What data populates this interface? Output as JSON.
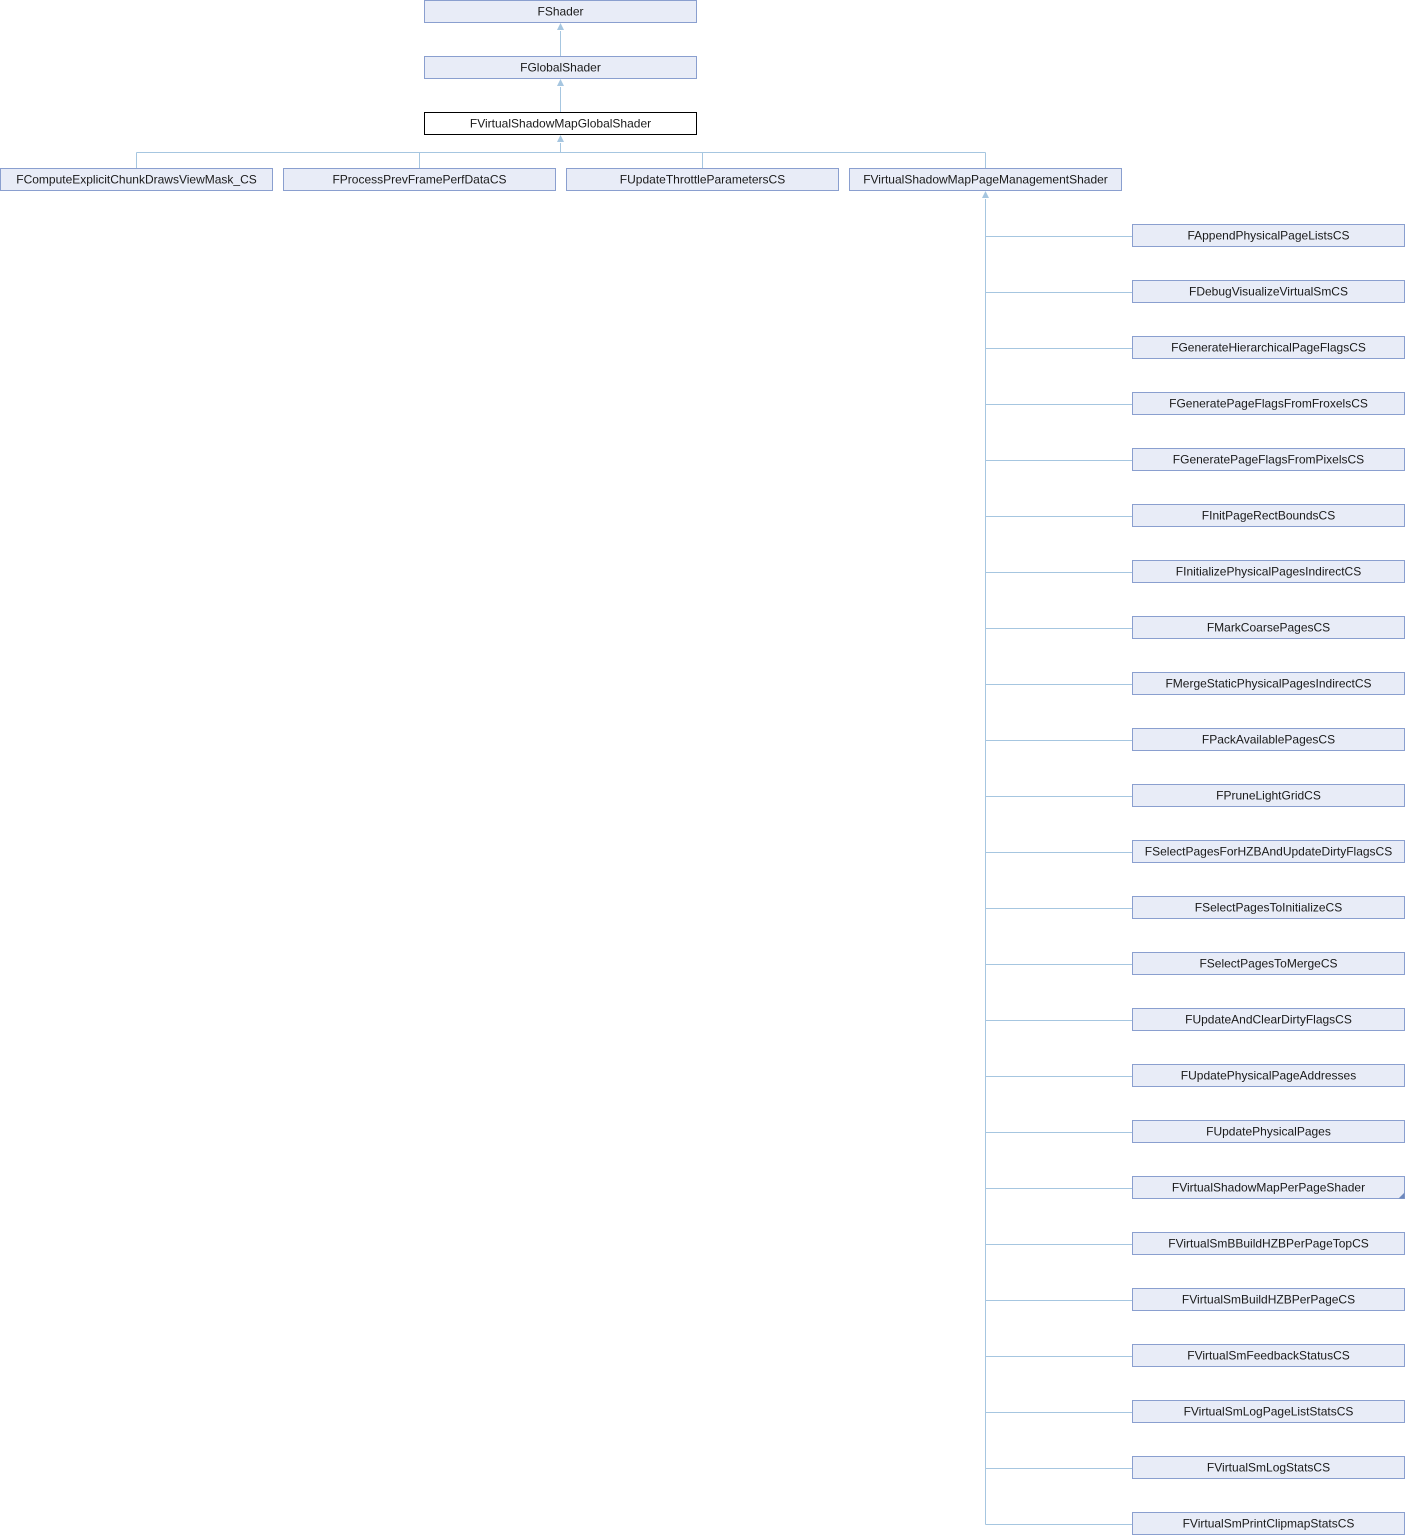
{
  "diagram": {
    "type": "class-inheritance",
    "nodes": {
      "root": "FShader",
      "level1": "FGlobalShader",
      "current": "FVirtualShadowMapGlobalShader",
      "children": [
        "FComputeExplicitChunkDrawsViewMask_CS",
        "FProcessPrevFramePerfDataCS",
        "FUpdateThrottleParametersCS",
        "FVirtualShadowMapPageManagementShader"
      ],
      "grandchildren": [
        "FAppendPhysicalPageListsCS",
        "FDebugVisualizeVirtualSmCS",
        "FGenerateHierarchicalPageFlagsCS",
        "FGeneratePageFlagsFromFroxelsCS",
        "FGeneratePageFlagsFromPixelsCS",
        "FInitPageRectBoundsCS",
        "FInitializePhysicalPagesIndirectCS",
        "FMarkCoarsePagesCS",
        "FMergeStaticPhysicalPagesIndirectCS",
        "FPackAvailablePagesCS",
        "FPruneLightGridCS",
        "FSelectPagesForHZBAndUpdateDirtyFlagsCS",
        "FSelectPagesToInitializeCS",
        "FSelectPagesToMergeCS",
        "FUpdateAndClearDirtyFlagsCS",
        "FUpdatePhysicalPageAddresses",
        "FUpdatePhysicalPages",
        "FVirtualShadowMapPerPageShader",
        "FVirtualSmBBuildHZBPerPageTopCS",
        "FVirtualSmBuildHZBPerPageCS",
        "FVirtualSmFeedbackStatusCS",
        "FVirtualSmLogPageListStatsCS",
        "FVirtualSmLogStatsCS",
        "FVirtualSmPrintClipmapStatsCS"
      ],
      "has_more_marker": "FVirtualShadowMapPerPageShader"
    },
    "colors": {
      "node_fill": "#e8ecf7",
      "node_border": "#8a9fcf",
      "current_border": "#000000",
      "edge": "#a6c6e0"
    }
  }
}
